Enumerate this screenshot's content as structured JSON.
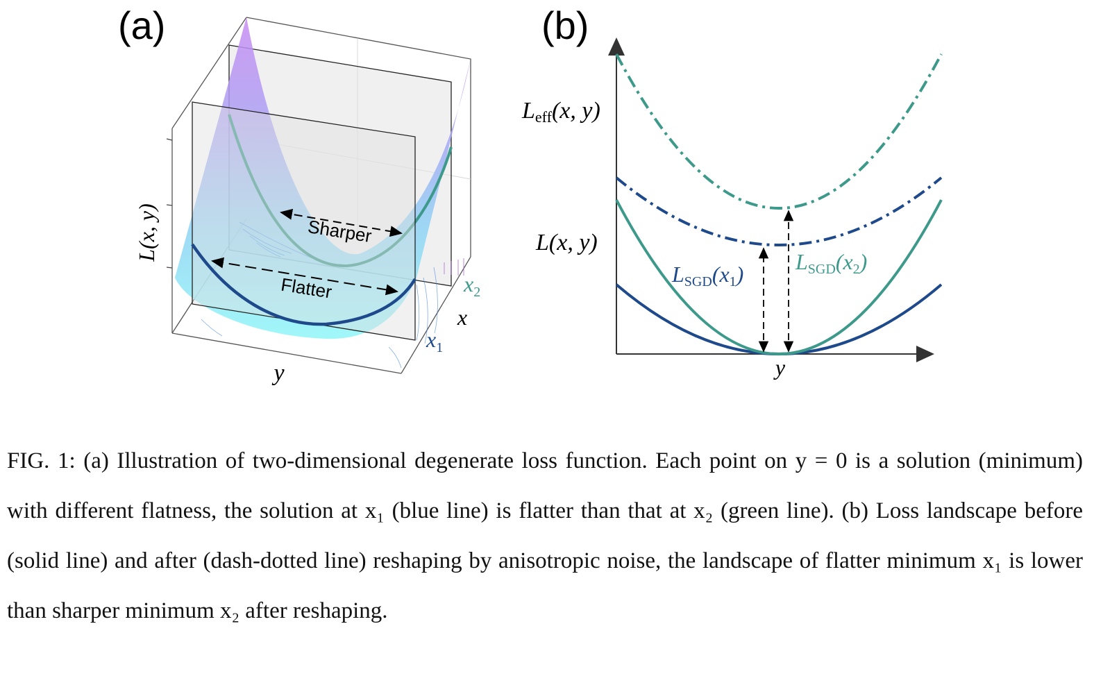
{
  "figure": {
    "panel_a": {
      "label": "(a)",
      "zlabel": "L(x, y)",
      "ylabel": "y",
      "xlabel": "x",
      "x1_label": "x",
      "x1_sub": "1",
      "x2_label": "x",
      "x2_sub": "2",
      "sharper_label": "Sharper",
      "flatter_label": "Flatter"
    },
    "panel_b": {
      "label": "(b)",
      "leff_label_main": "L",
      "leff_label_sub": "eff",
      "leff_label_args": "(x, y)",
      "l_label": "L(x, y)",
      "xaxis_label": "y",
      "lsgd1_main": "L",
      "lsgd1_sub": "SGD",
      "lsgd1_args": "(x",
      "lsgd1_argsub": "1",
      "lsgd1_close": ")",
      "lsgd2_main": "L",
      "lsgd2_sub": "SGD",
      "lsgd2_args": "(x",
      "lsgd2_argsub": "2",
      "lsgd2_close": ")"
    },
    "colors": {
      "blue": "#1e4a8c",
      "green": "#3d9a8b",
      "surface_top": "#c58ef0",
      "surface_bottom": "#8ff4f6"
    }
  },
  "caption": {
    "text": "FIG. 1: (a) Illustration of two-dimensional degenerate loss function. Each point on y = 0 is a solution (minimum) with different flatness, the solution at x₁ (blue line) is flatter than that at x₂ (green line). (b) Loss landscape before (solid line) and after (dash-dotted line) reshaping by anisotropic noise, the landscape of flatter minimum x₁ is lower than sharper minimum x₂ after reshaping."
  }
}
